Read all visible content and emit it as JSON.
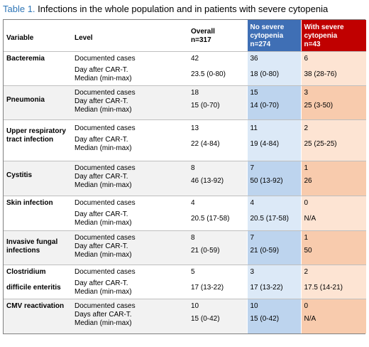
{
  "caption": {
    "label": "Table 1.",
    "text": " Infections in the whole population and in patients with severe cytopenia"
  },
  "header": {
    "variable": "Variable",
    "level": "Level",
    "overall": [
      "Overall",
      "n=317"
    ],
    "no_severe": [
      "No severe",
      "cytopenia",
      "n=274"
    ],
    "with_severe": [
      "With severe",
      "cytopenia",
      "n=43"
    ]
  },
  "colors": {
    "caption_label": "#2e75b6",
    "no_severe_header": "#3f6fb5",
    "with_severe_header": "#c00000",
    "no_severe_light": "#dce9f7",
    "no_severe_dark": "#bdd4ee",
    "with_severe_light": "#fde4d3",
    "with_severe_dark": "#f8cbad"
  },
  "rows": [
    {
      "variable": [
        "Bacteremia"
      ],
      "level": [
        "Documented cases",
        "Day after CAR-T.",
        "Median (min-max)"
      ],
      "overall": [
        "42",
        "23.5 (0-80)"
      ],
      "no_severe": [
        "36",
        "18 (0-80)"
      ],
      "with_severe": [
        "6",
        "38 (28-76)"
      ]
    },
    {
      "variable": [
        "Pneumonia"
      ],
      "level": [
        "Documented cases",
        "Day after CAR-T.",
        "Median (min-max)"
      ],
      "overall": [
        "18",
        "15 (0-70)"
      ],
      "no_severe": [
        "15",
        "14 (0-70)"
      ],
      "with_severe": [
        "3",
        "25 (3-50)"
      ]
    },
    {
      "variable": [
        "Upper respiratory",
        "tract infection"
      ],
      "level": [
        "Documented cases",
        "Day after CAR-T.",
        "Median (min-max)"
      ],
      "overall": [
        "13",
        "22 (4-84)"
      ],
      "no_severe": [
        "11",
        "19 (4-84)"
      ],
      "with_severe": [
        "2",
        "25 (25-25)"
      ]
    },
    {
      "variable": [
        "Cystitis"
      ],
      "level": [
        "Documented cases",
        "Day after CAR-T.",
        "Median (min-max)"
      ],
      "overall": [
        "8",
        "46 (13-92)"
      ],
      "no_severe": [
        "7",
        "50 (13-92)"
      ],
      "with_severe": [
        "1",
        "26"
      ]
    },
    {
      "variable": [
        "Skin infection"
      ],
      "level": [
        "Documented cases",
        "Day after CAR-T.",
        "Median (min-max)"
      ],
      "overall": [
        "4",
        "20.5 (17-58)"
      ],
      "no_severe": [
        "4",
        "20.5 (17-58)"
      ],
      "with_severe": [
        "0",
        "N/A"
      ]
    },
    {
      "variable": [
        "Invasive fungal",
        "infections"
      ],
      "level": [
        "Documented cases",
        "Day after CAR-T.",
        "Median (min-max)"
      ],
      "overall": [
        "8",
        "21 (0-59)"
      ],
      "no_severe": [
        "7",
        "21 (0-59)"
      ],
      "with_severe": [
        "1",
        "50"
      ]
    },
    {
      "variable": [
        "Clostridium",
        "difficile enteritis"
      ],
      "level": [
        "Documented cases",
        "Day after CAR-T.",
        "Median (min-max)"
      ],
      "overall": [
        "5",
        "17 (13-22)"
      ],
      "no_severe": [
        "3",
        "17 (13-22)"
      ],
      "with_severe": [
        "2",
        "17.5 (14-21)"
      ]
    },
    {
      "variable": [
        "CMV reactivation"
      ],
      "level": [
        "Documented cases",
        "Days after CAR-T.",
        "Median (min-max)"
      ],
      "overall": [
        "10",
        "15 (0-42)"
      ],
      "no_severe": [
        "10",
        "15 (0-42)"
      ],
      "with_severe": [
        "0",
        "N/A"
      ]
    }
  ]
}
